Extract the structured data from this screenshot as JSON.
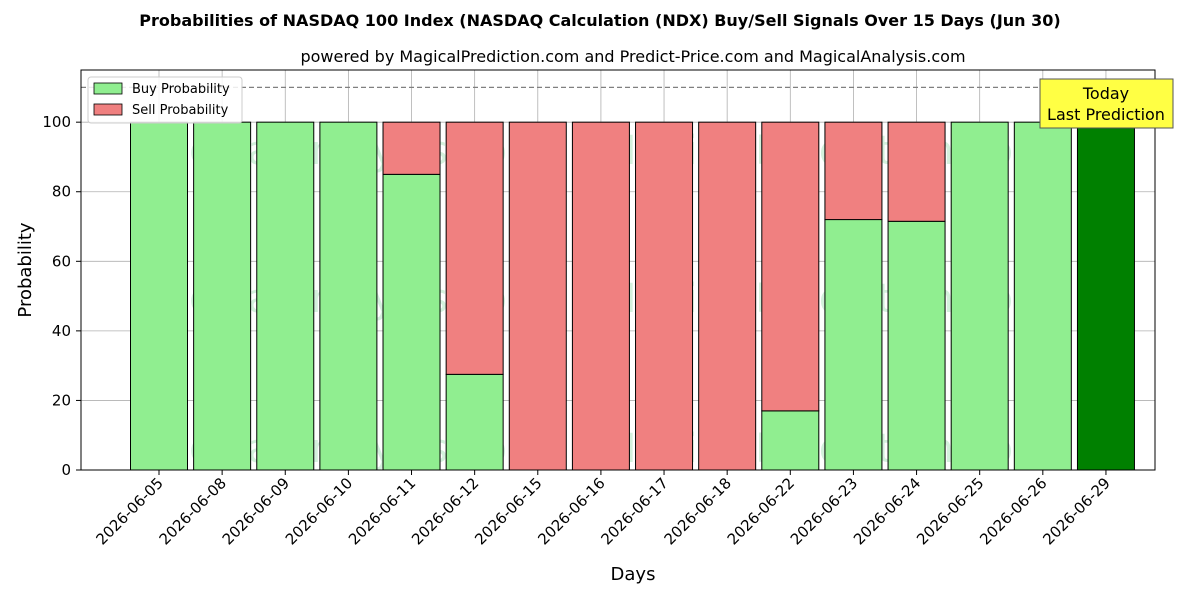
{
  "chart_data": {
    "type": "bar",
    "stacked": true,
    "title": "Probabilities of NASDAQ 100 Index (NASDAQ Calculation (NDX) Buy/Sell Signals Over 15 Days (Jun 30)",
    "subtitle": "powered by MagicalPrediction.com and Predict-Price.com and MagicalAnalysis.com",
    "xlabel": "Days",
    "ylabel": "Probability",
    "ylim": [
      0,
      115
    ],
    "yticks": [
      0,
      20,
      40,
      60,
      80,
      100
    ],
    "grid": true,
    "legend_position": "top-left",
    "reference_line": 110,
    "categories": [
      "2026-06-05",
      "2026-06-08",
      "2026-06-09",
      "2026-06-10",
      "2026-06-11",
      "2026-06-12",
      "2026-06-15",
      "2026-06-16",
      "2026-06-17",
      "2026-06-18",
      "2026-06-22",
      "2026-06-23",
      "2026-06-24",
      "2026-06-25",
      "2026-06-26",
      "2026-06-29"
    ],
    "series": [
      {
        "name": "Buy Probability",
        "color": "#90ee90",
        "values": [
          100,
          100,
          100,
          100,
          85,
          27.5,
          0,
          0,
          0,
          0,
          17,
          72,
          71.5,
          100,
          100,
          100
        ]
      },
      {
        "name": "Sell Probability",
        "color": "#f08080",
        "values": [
          0,
          0,
          0,
          0,
          15,
          72.5,
          100,
          100,
          100,
          100,
          83,
          28,
          28.5,
          0,
          0,
          0
        ]
      }
    ],
    "highlight": {
      "category": "2026-06-29",
      "color": "#008000"
    },
    "annotation": {
      "line1": "Today",
      "line2": "Last Prediction",
      "background": "#ffff44"
    },
    "watermarks": [
      "MagicalAnalysis.com",
      "MagicalPrediction.com"
    ]
  }
}
